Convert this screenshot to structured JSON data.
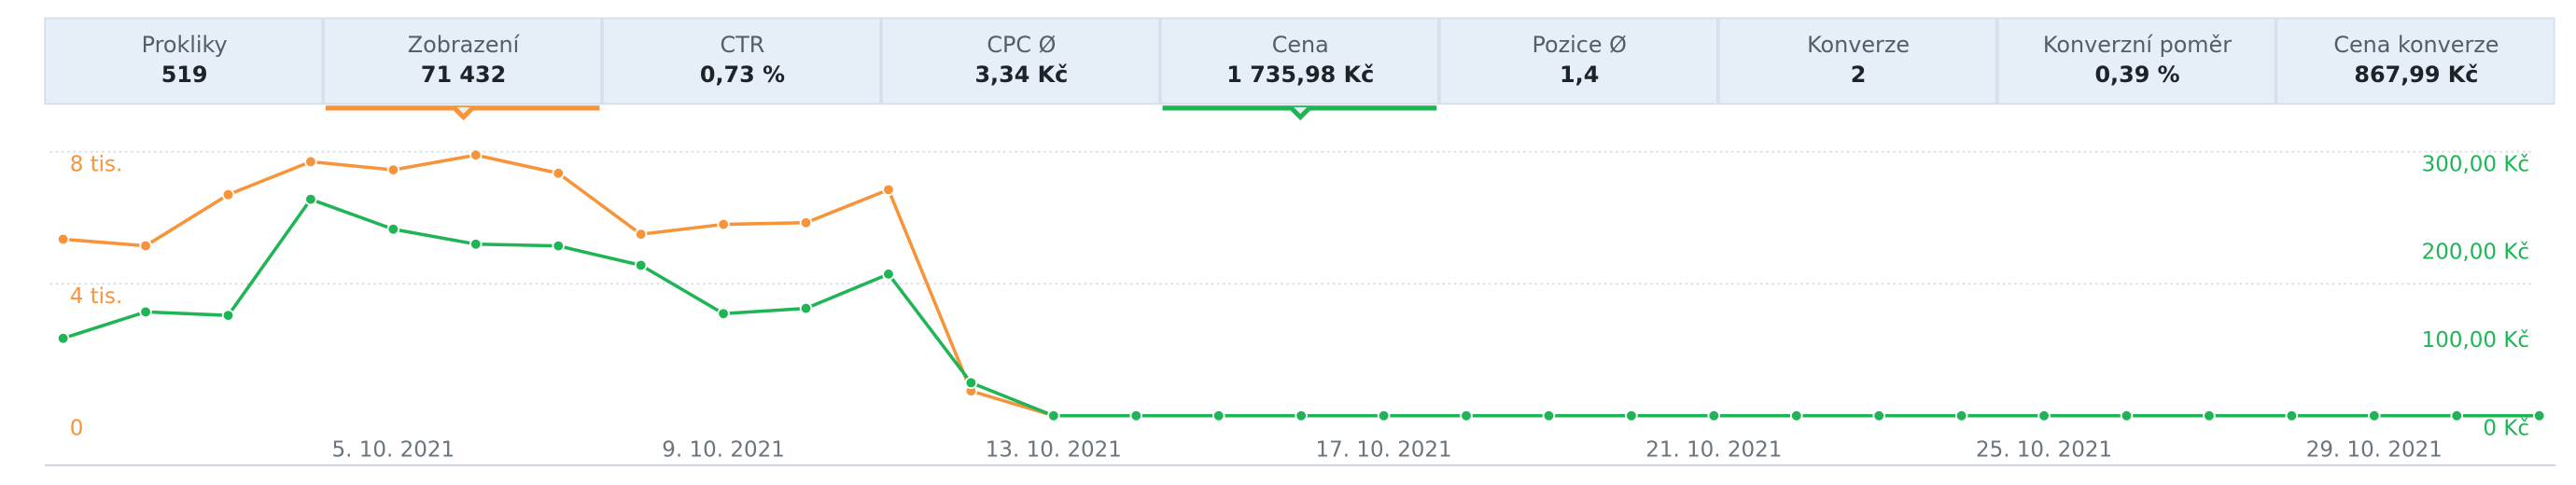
{
  "tabs": [
    {
      "label": "Prokliky",
      "value": "519"
    },
    {
      "label": "Zobrazení",
      "value": "71 432"
    },
    {
      "label": "CTR",
      "value": "0,73 %"
    },
    {
      "label": "CPC Ø",
      "value": "3,34 Kč"
    },
    {
      "label": "Cena",
      "value": "1 735,98 Kč"
    },
    {
      "label": "Pozice Ø",
      "value": "1,4"
    },
    {
      "label": "Konverze",
      "value": "2"
    },
    {
      "label": "Konverzní poměr",
      "value": "0,39 %"
    },
    {
      "label": "Cena konverze",
      "value": "867,99 Kč"
    }
  ],
  "chart_data": {
    "type": "line",
    "categories": [
      null,
      null,
      null,
      null,
      "5. 10. 2021",
      null,
      null,
      null,
      "9. 10. 2021",
      null,
      null,
      null,
      "13. 10. 2021",
      null,
      null,
      null,
      "17. 10. 2021",
      null,
      null,
      null,
      "21. 10. 2021",
      null,
      null,
      null,
      "25. 10. 2021",
      null,
      null,
      null,
      "29. 10. 2021",
      null,
      null
    ],
    "series": [
      {
        "name": "Zobrazení",
        "color": "#f7943a",
        "axis": "y",
        "values": [
          5350,
          5150,
          6700,
          7700,
          7450,
          7900,
          7350,
          5500,
          5800,
          5850,
          6850,
          750,
          0,
          0,
          0,
          0,
          0,
          0,
          0,
          0,
          0,
          0,
          0,
          0,
          0,
          0,
          0,
          0,
          0,
          0,
          0
        ]
      },
      {
        "name": "Cena",
        "color": "#1fb556",
        "axis": "y2",
        "values": [
          88,
          118,
          114,
          246,
          212,
          195,
          193,
          171,
          116,
          122,
          161,
          37.5,
          0,
          0,
          0,
          0,
          0,
          0,
          0,
          0,
          0,
          0,
          0,
          0,
          0,
          0,
          0,
          0,
          0,
          0,
          0
        ]
      }
    ],
    "ylim": [
      0,
      8000
    ],
    "yticks": [
      0,
      {
        "value": 4000,
        "label": "4 tis."
      },
      {
        "value": 8000,
        "label": "8 tis."
      }
    ],
    "y2lim": [
      0,
      300
    ],
    "y2ticks": [
      {
        "value": 0,
        "label": "0 Kč"
      },
      {
        "value": 100,
        "label": "100,00 Kč"
      },
      {
        "value": 200,
        "label": "200,00 Kč"
      },
      {
        "value": 300,
        "label": "300,00 Kč"
      }
    ],
    "grid": true
  }
}
